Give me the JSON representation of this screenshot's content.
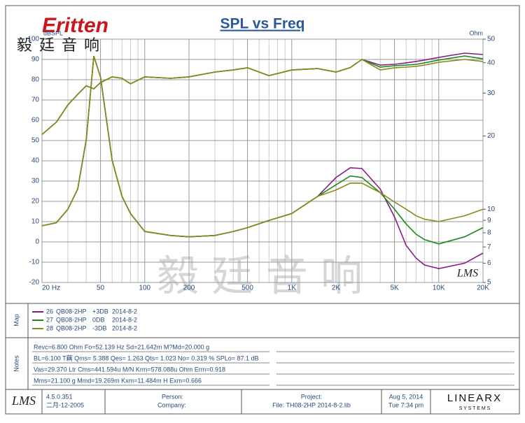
{
  "brand": {
    "logo": "Eritten",
    "chinese": "毅廷音响",
    "watermark": "毅廷音响",
    "plot_logo": "LMS"
  },
  "chart_data": {
    "type": "line",
    "title": "SPL vs Freq",
    "ylabel": "dBSPL",
    "y2label": "Ohm",
    "xscale": "log",
    "y2scale": "log",
    "grid": true,
    "xlim": [
      20,
      20000
    ],
    "xticks": [
      {
        "value": 20,
        "label": "20 Hz"
      },
      50,
      100,
      200,
      500,
      {
        "value": 1000,
        "label": "1K"
      },
      {
        "value": 2000,
        "label": "2K"
      },
      {
        "value": 5000,
        "label": "5K"
      },
      {
        "value": 10000,
        "label": "10K"
      },
      {
        "value": 20000,
        "label": "20K"
      }
    ],
    "xminor_ticks": [
      30,
      40,
      60,
      70,
      80,
      90,
      300,
      400,
      600,
      700,
      800,
      900,
      3000,
      4000,
      6000,
      7000,
      8000,
      9000
    ],
    "ylim": [
      -20,
      100
    ],
    "yticks": [
      -20,
      -10,
      0,
      10,
      20,
      30,
      40,
      50,
      60,
      70,
      80,
      90,
      100
    ],
    "y2lim": [
      5,
      50
    ],
    "y2ticks": [
      5,
      6,
      7,
      8,
      9,
      10,
      20,
      30,
      40,
      50
    ],
    "x": [
      20,
      25,
      30,
      35,
      40,
      45,
      50,
      60,
      70,
      80,
      100,
      150,
      200,
      300,
      400,
      500,
      700,
      1000,
      1500,
      2000,
      2500,
      3000,
      4000,
      5000,
      6000,
      7000,
      8000,
      10000,
      15000,
      20000
    ],
    "series": [
      {
        "color": "#8a1a8a",
        "values": [
          53,
          59,
          67.6,
          72.8,
          77,
          75.5,
          78.6,
          81.4,
          80.7,
          78,
          81.4,
          80.7,
          81.4,
          83.8,
          84.8,
          85.9,
          82,
          84.8,
          85.5,
          83.8,
          86,
          90,
          87.2,
          87.6,
          88.3,
          89,
          89.7,
          91,
          93.1,
          92.4
        ]
      },
      {
        "color": "#1f8a1f",
        "values": [
          53,
          59,
          67.6,
          72.8,
          77,
          75.5,
          78.6,
          81.4,
          80.7,
          78,
          81.4,
          80.7,
          81.4,
          83.8,
          84.8,
          85.9,
          82,
          84.8,
          85.5,
          83.8,
          86,
          90,
          86.2,
          86.9,
          87.2,
          87.6,
          88.3,
          89.7,
          91.7,
          90.3
        ]
      },
      {
        "color": "#8a8a1a",
        "values": [
          53,
          59,
          67.6,
          72.8,
          77,
          75.5,
          78.6,
          81.4,
          80.7,
          78,
          81.4,
          80.7,
          81.4,
          83.8,
          84.8,
          85.9,
          82,
          84.8,
          85.5,
          83.8,
          86,
          90,
          84.8,
          85.9,
          86.2,
          86.6,
          87.2,
          88.6,
          90,
          89
        ]
      },
      {
        "color": "#8a1a8a",
        "axis": "y2",
        "values": [
          8.55,
          8.8,
          10,
          12.1,
          19.3,
          42.6,
          34.9,
          15.9,
          11.3,
          9.6,
          8.1,
          7.8,
          7.7,
          7.8,
          8.1,
          8.4,
          9,
          9.6,
          11.3,
          13.5,
          14.8,
          14.7,
          12.1,
          9.3,
          7.1,
          6.3,
          5.9,
          5.7,
          6.0,
          6.6
        ]
      },
      {
        "color": "#1f8a1f",
        "axis": "y2",
        "values": [
          8.55,
          8.8,
          10,
          12.1,
          19.3,
          42.6,
          34.9,
          15.9,
          11.3,
          9.6,
          8.1,
          7.8,
          7.7,
          7.8,
          8.1,
          8.4,
          9,
          9.6,
          11.3,
          12.6,
          13.7,
          13.5,
          11.7,
          10,
          8.7,
          7.9,
          7.5,
          7.2,
          7.7,
          8.4
        ]
      },
      {
        "color": "#8a8a1a",
        "axis": "y2",
        "values": [
          8.55,
          8.8,
          10,
          12.1,
          19.3,
          42.6,
          34.9,
          15.9,
          11.3,
          9.6,
          8.1,
          7.8,
          7.7,
          7.8,
          8.1,
          8.4,
          9,
          9.6,
          11.3,
          12,
          12.8,
          12.8,
          11.7,
          10.7,
          10,
          9.4,
          9.1,
          8.9,
          9.4,
          10
        ]
      }
    ]
  },
  "map": {
    "label": "Map",
    "entries": [
      {
        "color": "#8a1a8a",
        "id": "26",
        "name": "QB08-2HP",
        "level": "+3DB",
        "date": "2014-8-2"
      },
      {
        "color": "#1f8a1f",
        "id": "27",
        "name": "QB08-2HP",
        "level": "0DB",
        "date": "2014-8-2"
      },
      {
        "color": "#8a8a1a",
        "id": "28",
        "name": "QB08-2HP",
        "level": "-3DB",
        "date": "2014-8-2"
      }
    ]
  },
  "notes": {
    "label": "Notes",
    "lines": [
      "Revc=6.800 Ohm  Fo=52.139 Hz  Sd=21.642m  M?Md=20.000 g",
      "BL=6.100 T藕  Qms= 5.388  Qes= 1.263  Qts= 1.023  No= 0.319 %  SPLo= 87.1 dB",
      "Vas=29.370 Ltr  Cms=441.594u M/N  Krm=578.088u Ohm  Erm=0.918",
      "Mms=21.100 g  Mmd=19.269m  Kxm=11.484m H  Exm=0.666"
    ]
  },
  "footer": {
    "logo": "LMS",
    "version": "4.5.0.351",
    "version_date": "二月-12-2005",
    "person": "Person:",
    "company": "Company:",
    "project": "Project:",
    "file": "File: TH08-2HP   2014-8-2.lib",
    "date": "Aug  5, 2014",
    "time": "Tue  7:34 pm",
    "vendor": "LINEARX",
    "vendor_sub": "S Y S T E M S"
  }
}
